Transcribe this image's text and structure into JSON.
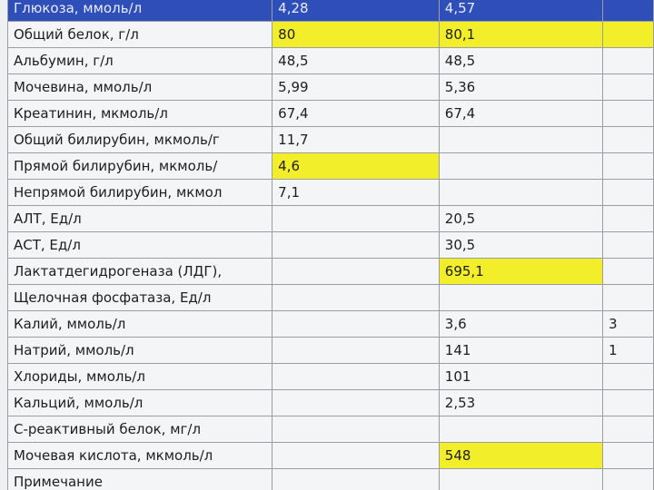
{
  "table": {
    "rows": [
      [
        "Глюкоза, ммоль/л",
        "4,28",
        "4,57",
        null
      ],
      [
        "Общий белок, г/л",
        "80",
        "80,1",
        null
      ],
      [
        "Альбумин, г/л",
        "48,5",
        "48,5",
        null
      ],
      [
        "Мочевина, ммоль/л",
        "5,99",
        "5,36",
        null
      ],
      [
        "Креатинин, мкмоль/л",
        "67,4",
        "67,4",
        null
      ],
      [
        "Общий билирубин, мкмоль/г",
        "11,7",
        null,
        null
      ],
      [
        "Прямой билирубин, мкмоль/",
        "4,6",
        null,
        null
      ],
      [
        "Непрямой билирубин, мкмол",
        "7,1",
        null,
        null
      ],
      [
        "АЛТ, Ед/л",
        null,
        "20,5",
        null
      ],
      [
        "АСТ, Ед/л",
        null,
        "30,5",
        null
      ],
      [
        "Лактатдегидрогеназа (ЛДГ),",
        null,
        "695,1",
        null
      ],
      [
        "Щелочная фосфатаза, Ед/л",
        null,
        null,
        null
      ],
      [
        "Калий, ммоль/л",
        null,
        "3,6",
        "3"
      ],
      [
        "Натрий, ммоль/л",
        null,
        "141",
        "1"
      ],
      [
        "Хлориды, ммоль/л",
        null,
        "101",
        null
      ],
      [
        "Кальций, ммоль/л",
        null,
        "2,53",
        null
      ],
      [
        "С-реактивный белок, мг/л",
        null,
        null,
        null
      ],
      [
        "Мочевая кислота, мкмоль/л",
        null,
        "548",
        null
      ],
      [
        "Примечание",
        null,
        null,
        null
      ]
    ]
  }
}
